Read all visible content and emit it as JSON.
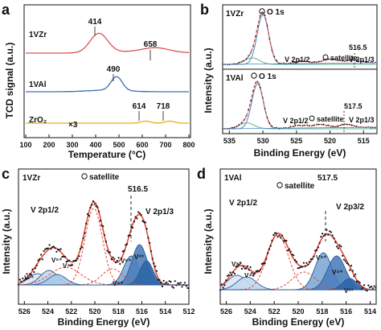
{
  "figure": {
    "panels": [
      {
        "letter": "a",
        "ylabel": "TCD signal (a.u.)",
        "xlabel": "Temperature (°C)",
        "ticks": [
          "100",
          "200",
          "300",
          "400",
          "500",
          "600",
          "700",
          "800"
        ],
        "mult_label": "×3",
        "curves": [
          {
            "name": "1VZr",
            "peaks": [
              "414",
              "658"
            ]
          },
          {
            "name": "1VAl",
            "peaks": [
              "490"
            ]
          },
          {
            "name": "ZrO₂",
            "peaks": [
              "614",
              "718"
            ]
          }
        ]
      },
      {
        "letter": "b",
        "ylabel": "Intensity (a.u.)",
        "xlabel": "Binding Energy (eV)",
        "ticks": [
          "535",
          "530",
          "525",
          "520",
          "515"
        ],
        "subpanels": [
          {
            "name": "1VZr",
            "o1s": "O 1s",
            "v12": "V 2p1/2",
            "sat": "satellite",
            "v13": "V 2p1/3",
            "ev": "516.5"
          },
          {
            "name": "1VAl",
            "o1s": "O 1s",
            "v12": "V 2p1/2",
            "sat": "satellite",
            "v13": "V 2p1/3",
            "ev": "517.5"
          }
        ]
      },
      {
        "letter": "c",
        "name": "1VZr",
        "ylabel": "Intensity (a.u.)",
        "xlabel": "Binding Energy (eV)",
        "ticks": [
          "526",
          "524",
          "522",
          "520",
          "518",
          "516",
          "514",
          "512"
        ],
        "sat": "satellite",
        "ev": "516.5",
        "v12": "V 2p1/2",
        "v13": "V 2p1/3",
        "species": [
          "V⁵⁺",
          "V⁴⁺",
          "V³⁺",
          "V⁵⁺",
          "V⁴⁺",
          "V³⁺"
        ]
      },
      {
        "letter": "d",
        "name": "1VAl",
        "ylabel": "Intensity (a.u.)",
        "xlabel": "Binding Energy (eV)",
        "ticks": [
          "526",
          "524",
          "522",
          "520",
          "518",
          "516",
          "514"
        ],
        "sat": "satellite",
        "ev": "517.5",
        "v12": "V 2p1/2",
        "v32": "V 2p3/2",
        "species": [
          "V⁵⁺",
          "V⁴⁺",
          "V⁵⁺",
          "V⁴⁺",
          "V³⁺"
        ]
      }
    ]
  },
  "chart_data": [
    {
      "type": "line",
      "panel": "a",
      "xlabel": "Temperature (°C)",
      "ylabel": "TCD signal (a.u.)",
      "xlim": [
        100,
        800
      ],
      "series": [
        {
          "name": "1VZr",
          "color": "#d9534f",
          "peaks": [
            414,
            658
          ]
        },
        {
          "name": "1VAl",
          "color": "#3a6db5",
          "peaks": [
            490
          ]
        },
        {
          "name": "ZrO₂",
          "color": "#e3b21b",
          "peaks": [
            614,
            718
          ]
        }
      ]
    },
    {
      "type": "line",
      "panel": "b",
      "xlabel": "Binding Energy (eV)",
      "ylabel": "Intensity (a.u.)",
      "xlim": [
        536,
        513
      ],
      "series": [
        {
          "name": "1VZr",
          "peaks": [
            530,
            524.1,
            520,
            516.5
          ]
        },
        {
          "name": "1VAl",
          "peaks": [
            530.8,
            524.6,
            521.5,
            517.5
          ]
        }
      ]
    },
    {
      "type": "line",
      "panel": "c",
      "name": "1VZr",
      "xlabel": "Binding Energy (eV)",
      "ylabel": "Intensity (a.u.)",
      "xlim": [
        526.5,
        512
      ],
      "peaks": {
        "V 2p1/2": 524.1,
        "satellite": 520,
        "V 2p1/3": 516.5
      },
      "components": [
        {
          "species": "V⁵⁺",
          "center": 523.9
        },
        {
          "species": "V⁴⁺",
          "center": 523.3
        },
        {
          "species": "V³⁺",
          "center": 524.9
        },
        {
          "species": "V⁵⁺",
          "center": 516.2
        },
        {
          "species": "V⁴⁺",
          "center": 516.8
        },
        {
          "species": "V³⁺",
          "center": 515.6
        }
      ]
    },
    {
      "type": "line",
      "panel": "d",
      "name": "1VAl",
      "xlabel": "Binding Energy (eV)",
      "ylabel": "Intensity (a.u.)",
      "xlim": [
        526.5,
        513.5
      ],
      "peaks": {
        "V 2p1/2": 524.8,
        "satellite": 521.7,
        "V 2p3/2": 517.5
      },
      "components": [
        {
          "species": "V⁵⁺",
          "center": 525.1
        },
        {
          "species": "V⁴⁺",
          "center": 524.3
        },
        {
          "species": "V⁵⁺",
          "center": 517.9
        },
        {
          "species": "V⁴⁺",
          "center": 516.8
        },
        {
          "species": "V³⁺",
          "center": 515.8
        }
      ]
    }
  ]
}
